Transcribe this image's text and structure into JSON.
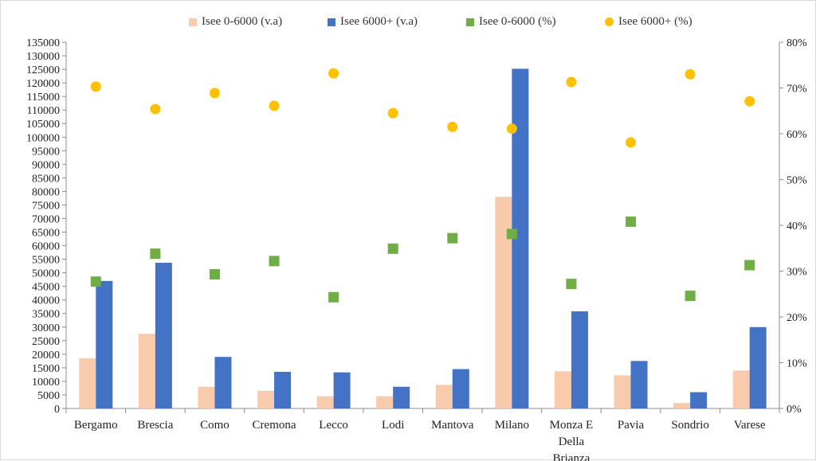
{
  "chart_data": {
    "type": "bar",
    "title": "",
    "xlabel": "",
    "ylabel": "",
    "categories": [
      "Bergamo",
      "Brescia",
      "Como",
      "Cremona",
      "Lecco",
      "Lodi",
      "Mantova",
      "Milano",
      "Monza E Della Brianza",
      "Pavia",
      "Sondrio",
      "Varese"
    ],
    "category_lines": [
      [
        "Bergamo"
      ],
      [
        "Brescia"
      ],
      [
        "Como"
      ],
      [
        "Cremona"
      ],
      [
        "Lecco"
      ],
      [
        "Lodi"
      ],
      [
        "Mantova"
      ],
      [
        "Milano"
      ],
      [
        "Monza E",
        "Della",
        "Brianza"
      ],
      [
        "Pavia"
      ],
      [
        "Sondrio"
      ],
      [
        "Varese"
      ]
    ],
    "ylim": [
      0,
      135000
    ],
    "ytick_step": 5000,
    "y_tick_labels": [
      "0",
      "5000",
      "10000",
      "15000",
      "20000",
      "25000",
      "30000",
      "35000",
      "40000",
      "45000",
      "50000",
      "55000",
      "60000",
      "65000",
      "70000",
      "75000",
      "80000",
      "85000",
      "90000",
      "95000",
      "100000",
      "105000",
      "110000",
      "115000",
      "120000",
      "125000",
      "130000",
      "135000"
    ],
    "y2lim": [
      0,
      0.8
    ],
    "y2_tick_labels": [
      "0%",
      "10%",
      "20%",
      "30%",
      "40%",
      "50%",
      "60%",
      "70%",
      "80%"
    ],
    "legend_position": "top",
    "grid": false,
    "series": [
      {
        "name": "Isee 0-6000 (v.a)",
        "kind": "bar",
        "axis": "left",
        "color": "#F8CBAD",
        "values": [
          18500,
          27500,
          8000,
          6500,
          4500,
          4500,
          8700,
          78000,
          13700,
          12200,
          2000,
          14000
        ]
      },
      {
        "name": "Isee 6000+ (v.a)",
        "kind": "bar",
        "axis": "left",
        "color": "#4472C4",
        "values": [
          47000,
          53700,
          19000,
          13500,
          13300,
          8000,
          14500,
          125200,
          35800,
          17500,
          6000,
          30000
        ]
      },
      {
        "name": "Isee 0-6000 (%)",
        "kind": "scatter",
        "marker": "square",
        "axis": "right",
        "color": "#70AD47",
        "values": [
          0.277,
          0.338,
          0.293,
          0.322,
          0.243,
          0.349,
          0.372,
          0.381,
          0.272,
          0.408,
          0.246,
          0.313
        ]
      },
      {
        "name": "Isee 6000+ (%)",
        "kind": "scatter",
        "marker": "circle",
        "axis": "right",
        "color": "#FFC000",
        "values": [
          0.703,
          0.654,
          0.689,
          0.661,
          0.732,
          0.645,
          0.615,
          0.611,
          0.713,
          0.581,
          0.73,
          0.671
        ]
      }
    ]
  }
}
